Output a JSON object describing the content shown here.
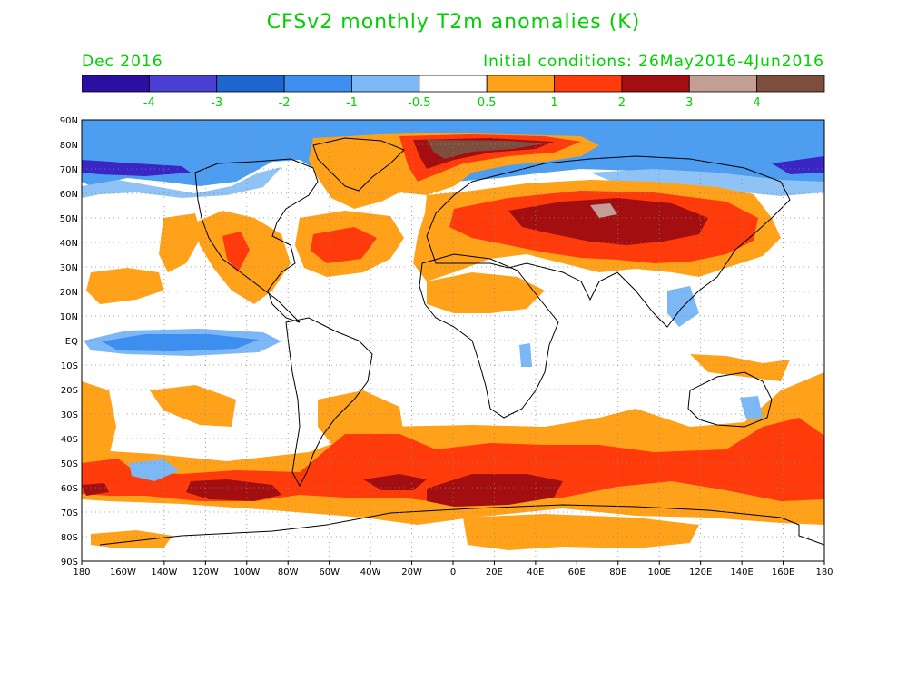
{
  "title": "CFSv2 monthly T2m anomalies (K)",
  "valid_month": "Dec 2016",
  "initial_conditions": "Initial conditions: 26May2016-4Jun2016",
  "colorbar": {
    "colors": [
      "#2b0fa0",
      "#4a3fd2",
      "#1f66d0",
      "#3c8ff0",
      "#7bb8f5",
      "#ffffff",
      "#ffa21a",
      "#ff3b0c",
      "#a30f10",
      "#c29e94",
      "#7d4e3e"
    ],
    "labels": [
      "-4",
      "-3",
      "-2",
      "-1",
      "-0.5",
      "0.5",
      "1",
      "2",
      "3",
      "4"
    ]
  },
  "axes": {
    "lat_labels": [
      "90N",
      "80N",
      "70N",
      "60N",
      "50N",
      "40N",
      "30N",
      "20N",
      "10N",
      "EQ",
      "10S",
      "20S",
      "30S",
      "40S",
      "50S",
      "60S",
      "70S",
      "80S",
      "90S"
    ],
    "lon_labels": [
      "180",
      "160W",
      "140W",
      "120W",
      "100W",
      "80W",
      "60W",
      "40W",
      "20W",
      "0",
      "20E",
      "40E",
      "60E",
      "80E",
      "100E",
      "120E",
      "140E",
      "160E",
      "180"
    ]
  },
  "anomaly_regions": [
    {
      "name": "Arctic Ocean cold band",
      "lon": [
        -180,
        180
      ],
      "lat": [
        72,
        88
      ],
      "anomaly": -1.5
    },
    {
      "name": "North Pacific 70N cold",
      "lon": [
        -180,
        -130
      ],
      "lat": [
        64,
        74
      ],
      "anomaly": -3.5
    },
    {
      "name": "Canada cold",
      "lon": [
        -130,
        -80
      ],
      "lat": [
        58,
        80
      ],
      "anomaly": -1.2
    },
    {
      "name": "East Siberian 70N cold",
      "lon": [
        145,
        180
      ],
      "lat": [
        66,
        76
      ],
      "anomaly": -3.5
    },
    {
      "name": "Equatorial Pacific cold tongue",
      "lon": [
        -170,
        -100
      ],
      "lat": [
        -3,
        4
      ],
      "anomaly": -1.3
    },
    {
      "name": "Greenland Sea warm",
      "lon": [
        -40,
        20
      ],
      "lat": [
        60,
        82
      ],
      "anomaly": 1.5
    },
    {
      "name": "Barents-Kara warm",
      "lon": [
        -5,
        40
      ],
      "lat": [
        74,
        84
      ],
      "anomaly": 4.0
    },
    {
      "name": "Eurasia warm",
      "lon": [
        10,
        150
      ],
      "lat": [
        25,
        70
      ],
      "anomaly": 2.0
    },
    {
      "name": "Central Asia hot core",
      "lon": [
        30,
        110
      ],
      "lat": [
        45,
        62
      ],
      "anomaly": 3.0
    },
    {
      "name": "Western US warm",
      "lon": [
        -130,
        -90
      ],
      "lat": [
        20,
        60
      ],
      "anomaly": 1.0
    },
    {
      "name": "North Atlantic warm",
      "lon": [
        -75,
        -20
      ],
      "lat": [
        25,
        55
      ],
      "anomaly": 1.0
    },
    {
      "name": "Southern Ocean warm belt",
      "lon": [
        -180,
        180
      ],
      "lat": [
        -70,
        -40
      ],
      "anomaly": 1.5
    },
    {
      "name": "South Atlantic-Indian hot core",
      "lon": [
        -20,
        40
      ],
      "lat": [
        -64,
        -56
      ],
      "anomaly": 3.0
    },
    {
      "name": "South Pacific hot core",
      "lon": [
        -130,
        -90
      ],
      "lat": [
        -63,
        -57
      ],
      "anomaly": 3.0
    },
    {
      "name": "Antarctic warm",
      "lon": [
        0,
        75
      ],
      "lat": [
        -88,
        -70
      ],
      "anomaly": 0.8
    },
    {
      "name": "Australia cool spot",
      "lon": [
        140,
        150
      ],
      "lat": [
        -30,
        -20
      ],
      "anomaly": -0.6
    }
  ]
}
